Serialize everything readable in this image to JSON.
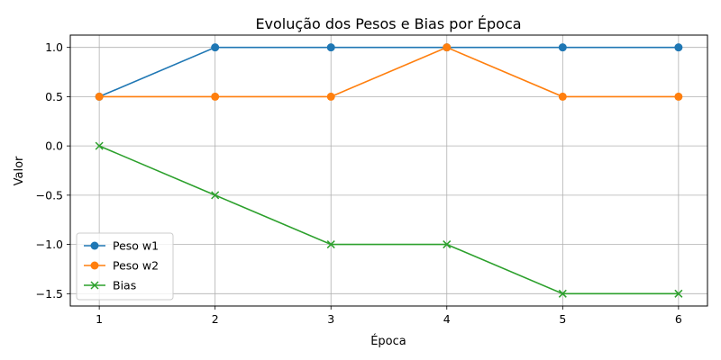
{
  "chart_data": {
    "type": "line",
    "title": "Evolução dos Pesos e Bias por Época",
    "xlabel": "Época",
    "ylabel": "Valor",
    "x": [
      1,
      2,
      3,
      4,
      5,
      6
    ],
    "x_tick_labels": [
      "1",
      "2",
      "3",
      "4",
      "5",
      "6"
    ],
    "y_tick_values": [
      -1.5,
      -1.0,
      -0.5,
      0.0,
      0.5,
      1.0
    ],
    "y_tick_labels": [
      "−1.5",
      "−1.0",
      "−0.5",
      "0.0",
      "0.5",
      "1.0"
    ],
    "xlim": [
      0.75,
      6.25
    ],
    "ylim": [
      -1.625,
      1.125
    ],
    "grid": true,
    "legend_position": "lower-left",
    "series": [
      {
        "name": "Peso w1",
        "values": [
          0.5,
          1.0,
          1.0,
          1.0,
          1.0,
          1.0
        ],
        "color": "#1f77b4",
        "marker": "circle"
      },
      {
        "name": "Peso w2",
        "values": [
          0.5,
          0.5,
          0.5,
          1.0,
          0.5,
          0.5
        ],
        "color": "#ff7f0e",
        "marker": "circle"
      },
      {
        "name": "Bias",
        "values": [
          0.0,
          -0.5,
          -1.0,
          -1.0,
          -1.5,
          -1.5
        ],
        "color": "#2ca02c",
        "marker": "x"
      }
    ]
  }
}
